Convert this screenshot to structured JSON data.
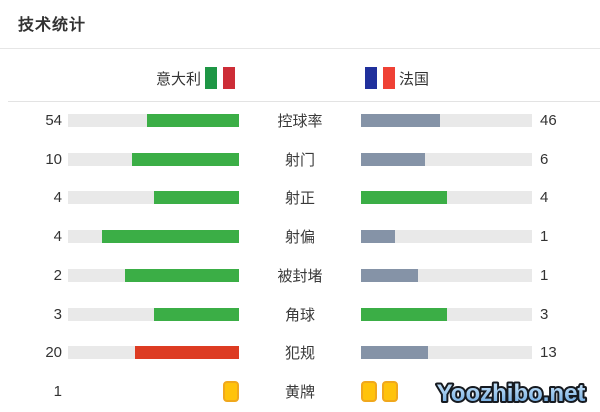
{
  "chart_data": {
    "type": "bar",
    "title": "技术统计",
    "categories": [
      "控球率",
      "射门",
      "射正",
      "射偏",
      "被封堵",
      "角球",
      "犯规",
      "黄牌"
    ],
    "series": [
      {
        "name": "意大利",
        "values": [
          54,
          10,
          4,
          4,
          2,
          3,
          20,
          1
        ]
      },
      {
        "name": "法国",
        "values": [
          46,
          6,
          4,
          1,
          1,
          3,
          13,
          2
        ]
      }
    ],
    "layout": "paired horizontal bars, home bars fill right-aligned, away bars fill left-aligned, fill fraction = value/(home+away)",
    "notes": "黄牌 row rendered as yellow card icons instead of bars; away yellow-card number hidden behind watermark"
  },
  "row_styles": [
    {
      "home_fill": "green",
      "away_fill": "gray"
    },
    {
      "home_fill": "green",
      "away_fill": "gray"
    },
    {
      "home_fill": "green",
      "away_fill": "green"
    },
    {
      "home_fill": "green",
      "away_fill": "gray"
    },
    {
      "home_fill": "green",
      "away_fill": "gray"
    },
    {
      "home_fill": "green",
      "away_fill": "green"
    },
    {
      "home_fill": "red",
      "away_fill": "gray"
    },
    {
      "type": "cards",
      "away_value_hidden": true
    }
  ],
  "teams": {
    "home": {
      "flag": "italy-flag",
      "flag_colors": [
        "#1e9645",
        "#ffffff",
        "#cd2d37"
      ]
    },
    "away": {
      "flag": "france-flag",
      "flag_colors": [
        "#20309c",
        "#ffffff",
        "#ef4135"
      ]
    }
  },
  "colors": {
    "green": "#3bae46",
    "red": "#dd3b22",
    "gray": "#8593a7",
    "track": "#e9e9e9",
    "yellow_card": "#ffc30b"
  },
  "watermark": "Yoozhibo.net"
}
